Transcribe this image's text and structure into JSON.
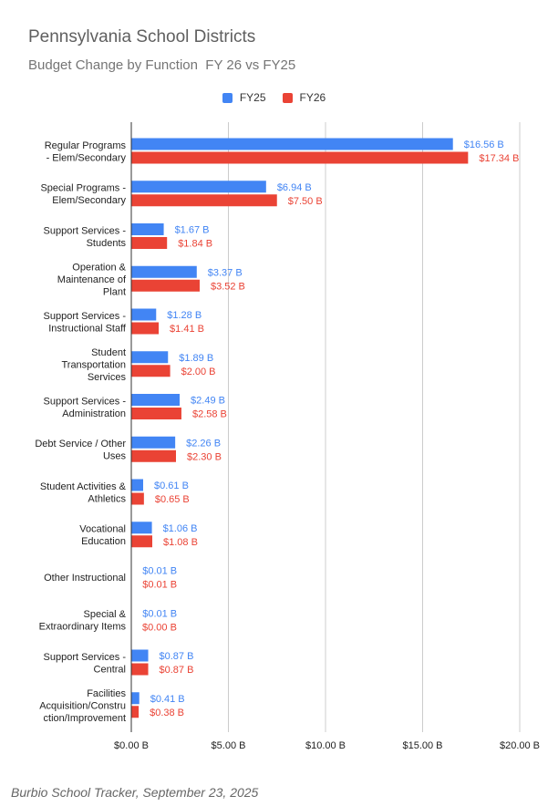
{
  "chart_data": {
    "type": "bar",
    "orientation": "horizontal",
    "title": "Pennsylvania School Districts",
    "subtitle": "Budget Change by Function  FY 26 vs FY25",
    "categories": [
      "Regular Programs\n- Elem/Secondary",
      "Special Programs -\nElem/Secondary",
      "Support Services -\nStudents",
      "Operation &\nMaintenance of\nPlant",
      "Support Services -\nInstructional Staff",
      "Student\nTransportation\nServices",
      "Support Services -\nAdministration",
      "Debt Service / Other\nUses",
      "Student Activities &\nAthletics",
      "Vocational\nEducation",
      "Other Instructional",
      "Special &\nExtraordinary Items",
      "Support Services -\nCentral",
      "Facilities\nAcquisition/Constru\nction/Improvement"
    ],
    "series": [
      {
        "name": "FY25",
        "color": "#4285f4",
        "values": [
          16.56,
          6.94,
          1.67,
          3.37,
          1.28,
          1.89,
          2.49,
          2.26,
          0.61,
          1.06,
          0.01,
          0.01,
          0.87,
          0.41
        ],
        "labels": [
          "$16.56 B",
          "$6.94 B",
          "$1.67 B",
          "$3.37 B",
          "$1.28 B",
          "$1.89 B",
          "$2.49 B",
          "$2.26 B",
          "$0.61 B",
          "$1.06 B",
          "$0.01 B",
          "$0.01 B",
          "$0.87 B",
          "$0.41 B"
        ]
      },
      {
        "name": "FY26",
        "color": "#ea4335",
        "values": [
          17.34,
          7.5,
          1.84,
          3.52,
          1.41,
          2.0,
          2.58,
          2.3,
          0.65,
          1.08,
          0.01,
          0.0,
          0.87,
          0.38
        ],
        "labels": [
          "$17.34 B",
          "$7.50 B",
          "$1.84 B",
          "$3.52 B",
          "$1.41 B",
          "$2.00 B",
          "$2.58 B",
          "$2.30 B",
          "$0.65 B",
          "$1.08 B",
          "$0.01 B",
          "$0.00 B",
          "$0.87 B",
          "$0.38 B"
        ]
      }
    ],
    "xlim": [
      0,
      20
    ],
    "xticks": [
      0,
      5,
      10,
      15,
      20
    ],
    "xtick_labels": [
      "$0.00 B",
      "$5.00 B",
      "$10.00 B",
      "$15.00 B",
      "$20.00 B"
    ],
    "grid": true,
    "legend_position": "top-center"
  },
  "footer": "Burbio School Tracker, September 23, 2025"
}
